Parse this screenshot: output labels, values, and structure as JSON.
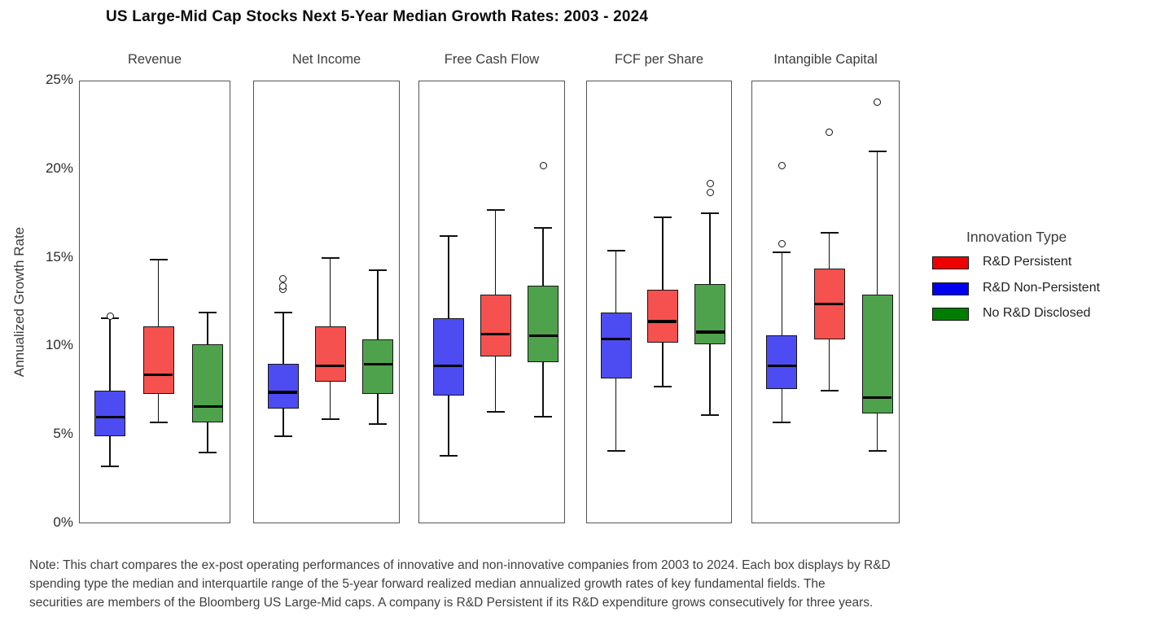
{
  "title": "US Large-Mid Cap Stocks Next 5-Year Median Growth Rates: 2003 - 2024",
  "y_axis": {
    "label": "Annualized Growth Rate",
    "min_pct": 0,
    "max_pct": 25,
    "ticks": [
      {
        "label": "25%",
        "value": 25
      },
      {
        "label": "20%",
        "value": 20
      },
      {
        "label": "15%",
        "value": 15
      },
      {
        "label": "10%",
        "value": 10
      },
      {
        "label": "5%",
        "value": 5
      },
      {
        "label": "0%",
        "value": 0
      }
    ]
  },
  "legend": {
    "title": "Innovation Type",
    "items": [
      {
        "label": "R&D Persistent",
        "color": "#ee0000"
      },
      {
        "label": "R&D Non-Persistent",
        "color": "#0000ee"
      },
      {
        "label": "No R&D Disclosed",
        "color": "#007d00"
      }
    ]
  },
  "note": {
    "lines": [
      "Note: This chart compares the ex-post operating performances of innovative and non-innovative companies from 2003 to 2024. Each box displays by R&D",
      "spending type the median and interquartile range of the 5-year forward realized median annualized growth rates of key fundamental fields. The",
      "securities are members of the Bloomberg US Large-Mid caps. A company is R&D Persistent if its R&D expenditure grows consecutively for three years."
    ]
  },
  "chart_data": {
    "type": "boxplot",
    "unit": "percent annualized growth rate",
    "ylim": [
      0,
      25
    ],
    "grid": false,
    "legend_position": "right",
    "box_colors": {
      "R&D Persistent": "#f5514e",
      "R&D Non-Persistent": "#4c4cf2",
      "No R&D Disclosed": "#4fa24c"
    },
    "panels": [
      {
        "label": "Revenue",
        "boxes": [
          {
            "series": "R&D Non-Persistent",
            "low": 3.2,
            "q1": 4.9,
            "median": 6.0,
            "q3": 7.5,
            "high": 11.6,
            "outliers": [
              11.7
            ]
          },
          {
            "series": "R&D Persistent",
            "low": 5.7,
            "q1": 7.3,
            "median": 8.4,
            "q3": 11.1,
            "high": 14.9,
            "outliers": []
          },
          {
            "series": "No R&D Disclosed",
            "low": 4.0,
            "q1": 5.7,
            "median": 6.6,
            "q3": 10.1,
            "high": 11.9,
            "outliers": []
          }
        ]
      },
      {
        "label": "Net Income",
        "boxes": [
          {
            "series": "R&D Non-Persistent",
            "low": 4.9,
            "q1": 6.5,
            "median": 7.4,
            "q3": 9.0,
            "high": 11.9,
            "outliers": [
              13.2,
              13.4,
              13.8
            ]
          },
          {
            "series": "R&D Persistent",
            "low": 5.9,
            "q1": 8.0,
            "median": 8.9,
            "q3": 11.1,
            "high": 15.0,
            "outliers": []
          },
          {
            "series": "No R&D Disclosed",
            "low": 5.6,
            "q1": 7.3,
            "median": 9.0,
            "q3": 10.4,
            "high": 14.3,
            "outliers": []
          }
        ]
      },
      {
        "label": "Free Cash Flow",
        "boxes": [
          {
            "series": "R&D Non-Persistent",
            "low": 3.8,
            "q1": 7.2,
            "median": 8.9,
            "q3": 11.6,
            "high": 16.2,
            "outliers": []
          },
          {
            "series": "R&D Persistent",
            "low": 6.3,
            "q1": 9.4,
            "median": 10.7,
            "q3": 12.9,
            "high": 17.7,
            "outliers": []
          },
          {
            "series": "No R&D Disclosed",
            "low": 6.0,
            "q1": 9.1,
            "median": 10.6,
            "q3": 13.4,
            "high": 16.7,
            "outliers": [
              20.2
            ]
          }
        ]
      },
      {
        "label": "FCF per Share",
        "boxes": [
          {
            "series": "R&D Non-Persistent",
            "low": 4.1,
            "q1": 8.2,
            "median": 10.4,
            "q3": 11.9,
            "high": 15.4,
            "outliers": []
          },
          {
            "series": "R&D Persistent",
            "low": 7.7,
            "q1": 10.2,
            "median": 11.4,
            "q3": 13.2,
            "high": 17.3,
            "outliers": []
          },
          {
            "series": "No R&D Disclosed",
            "low": 6.1,
            "q1": 10.1,
            "median": 10.8,
            "q3": 13.5,
            "high": 17.5,
            "outliers": [
              18.7,
              19.2
            ]
          }
        ]
      },
      {
        "label": "Intangible Capital",
        "boxes": [
          {
            "series": "R&D Non-Persistent",
            "low": 5.7,
            "q1": 7.6,
            "median": 8.9,
            "q3": 10.6,
            "high": 15.3,
            "outliers": [
              15.8,
              20.2
            ]
          },
          {
            "series": "R&D Persistent",
            "low": 7.5,
            "q1": 10.4,
            "median": 12.4,
            "q3": 14.4,
            "high": 16.4,
            "outliers": [
              22.1
            ]
          },
          {
            "series": "No R&D Disclosed",
            "low": 4.1,
            "q1": 6.2,
            "median": 7.1,
            "q3": 12.9,
            "high": 21.0,
            "outliers": [
              23.8
            ]
          }
        ]
      }
    ]
  }
}
